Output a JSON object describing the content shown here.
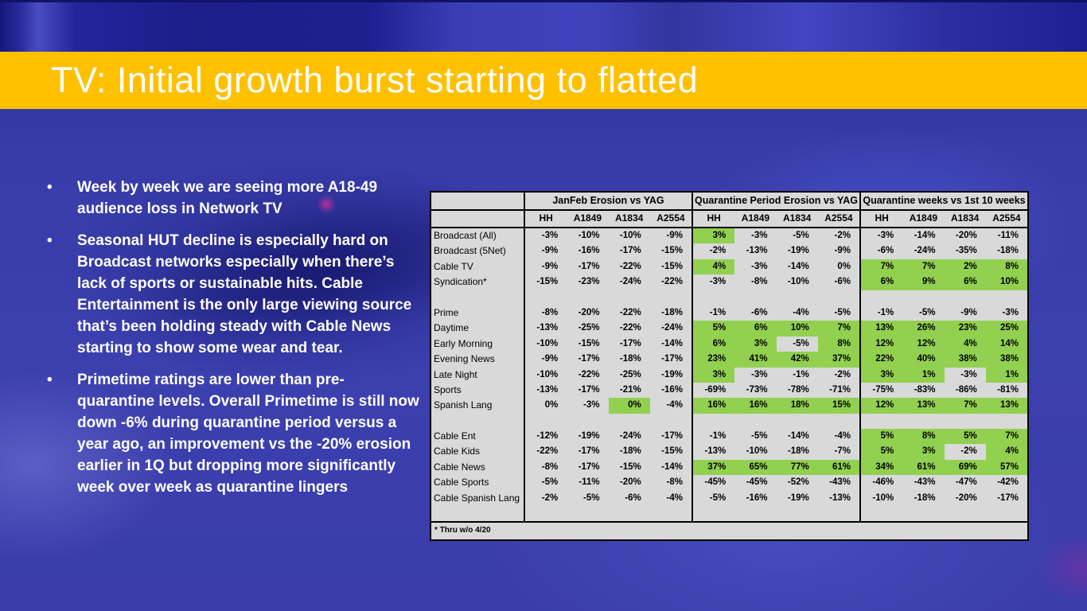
{
  "slide": {
    "title": "TV: Initial growth burst starting to flatted",
    "accent_color": "#FFC000"
  },
  "bullets": [
    "Week by week we are seeing more A18-49 audience loss in Network TV",
    "Seasonal HUT decline is especially hard on Broadcast networks especially when there’s lack of sports or sustainable hits. Cable Entertainment is the only large viewing source that’s been holding steady with Cable News starting to show some wear and tear.",
    "Primetime ratings are lower than pre-quarantine levels. Overall Primetime is still now down -6% during quarantine period versus a year ago, an improvement vs the -20% erosion earlier in 1Q but dropping more significantly week over week as quarantine lingers"
  ],
  "table": {
    "groups": [
      "JanFeb Erosion vs YAG",
      "Quarantine Period Erosion vs YAG",
      "Quarantine weeks vs 1st 10 weeks"
    ],
    "columns": [
      "HH",
      "A1849",
      "A1834",
      "A2554"
    ],
    "highlight_color": "#92D050",
    "background_color": "#D9D9D9",
    "footnote": "* Thru w/o 4/20",
    "rows": [
      {
        "label": "Broadcast (All)",
        "values": [
          "-3%",
          "-10%",
          "-10%",
          "-9%",
          "3%",
          "-3%",
          "-5%",
          "-2%",
          "-3%",
          "-14%",
          "-20%",
          "-11%"
        ],
        "green": [
          4
        ]
      },
      {
        "label": "Broadcast (5Net)",
        "values": [
          "-9%",
          "-16%",
          "-17%",
          "-15%",
          "-2%",
          "-13%",
          "-19%",
          "-9%",
          "-6%",
          "-24%",
          "-35%",
          "-18%"
        ],
        "green": []
      },
      {
        "label": "Cable TV",
        "values": [
          "-9%",
          "-17%",
          "-22%",
          "-15%",
          "4%",
          "-3%",
          "-14%",
          "0%",
          "7%",
          "7%",
          "2%",
          "8%"
        ],
        "green": [
          4,
          8,
          9,
          10,
          11
        ]
      },
      {
        "label": "Syndication*",
        "values": [
          "-15%",
          "-23%",
          "-24%",
          "-22%",
          "-3%",
          "-8%",
          "-10%",
          "-6%",
          "6%",
          "9%",
          "6%",
          "10%"
        ],
        "green": [
          8,
          9,
          10,
          11
        ]
      },
      {
        "spacer": true
      },
      {
        "label": "Prime",
        "values": [
          "-8%",
          "-20%",
          "-22%",
          "-18%",
          "-1%",
          "-6%",
          "-4%",
          "-5%",
          "-1%",
          "-5%",
          "-9%",
          "-3%"
        ],
        "green": []
      },
      {
        "label": "Daytime",
        "values": [
          "-13%",
          "-25%",
          "-22%",
          "-24%",
          "5%",
          "6%",
          "10%",
          "7%",
          "13%",
          "26%",
          "23%",
          "25%"
        ],
        "green": [
          4,
          5,
          6,
          7,
          8,
          9,
          10,
          11
        ]
      },
      {
        "label": "Early Morning",
        "values": [
          "-10%",
          "-15%",
          "-17%",
          "-14%",
          "6%",
          "3%",
          "-5%",
          "8%",
          "12%",
          "12%",
          "4%",
          "14%"
        ],
        "green": [
          4,
          5,
          7,
          8,
          9,
          10,
          11
        ]
      },
      {
        "label": "Evening News",
        "values": [
          "-9%",
          "-17%",
          "-18%",
          "-17%",
          "23%",
          "41%",
          "42%",
          "37%",
          "22%",
          "40%",
          "38%",
          "38%"
        ],
        "green": [
          4,
          5,
          6,
          7,
          8,
          9,
          10,
          11
        ]
      },
      {
        "label": "Late Night",
        "values": [
          "-10%",
          "-22%",
          "-25%",
          "-19%",
          "3%",
          "-3%",
          "-1%",
          "-2%",
          "3%",
          "1%",
          "-3%",
          "1%"
        ],
        "green": [
          4,
          8,
          9,
          11
        ]
      },
      {
        "label": "Sports",
        "values": [
          "-13%",
          "-17%",
          "-21%",
          "-16%",
          "-69%",
          "-73%",
          "-78%",
          "-71%",
          "-75%",
          "-83%",
          "-86%",
          "-81%"
        ],
        "green": []
      },
      {
        "label": "Spanish Lang",
        "values": [
          "0%",
          "-3%",
          "0%",
          "-4%",
          "16%",
          "16%",
          "18%",
          "15%",
          "12%",
          "13%",
          "7%",
          "13%"
        ],
        "green": [
          2,
          4,
          5,
          6,
          7,
          8,
          9,
          10,
          11
        ]
      },
      {
        "spacer": true
      },
      {
        "label": "Cable Ent",
        "values": [
          "-12%",
          "-19%",
          "-24%",
          "-17%",
          "-1%",
          "-5%",
          "-14%",
          "-4%",
          "5%",
          "8%",
          "5%",
          "7%"
        ],
        "green": [
          8,
          9,
          10,
          11
        ]
      },
      {
        "label": "Cable Kids",
        "values": [
          "-22%",
          "-17%",
          "-18%",
          "-15%",
          "-13%",
          "-10%",
          "-18%",
          "-7%",
          "5%",
          "3%",
          "-2%",
          "4%"
        ],
        "green": [
          8,
          9,
          11
        ]
      },
      {
        "label": "Cable News",
        "values": [
          "-8%",
          "-17%",
          "-15%",
          "-14%",
          "37%",
          "65%",
          "77%",
          "61%",
          "34%",
          "61%",
          "69%",
          "57%"
        ],
        "green": [
          4,
          5,
          6,
          7,
          8,
          9,
          10,
          11
        ]
      },
      {
        "label": "Cable Sports",
        "values": [
          "-5%",
          "-11%",
          "-20%",
          "-8%",
          "-45%",
          "-45%",
          "-52%",
          "-43%",
          "-46%",
          "-43%",
          "-47%",
          "-42%"
        ],
        "green": []
      },
      {
        "label": "Cable Spanish Lang",
        "values": [
          "-2%",
          "-5%",
          "-6%",
          "-4%",
          "-5%",
          "-16%",
          "-19%",
          "-13%",
          "-10%",
          "-18%",
          "-20%",
          "-17%"
        ],
        "green": []
      },
      {
        "spacer": true
      }
    ]
  }
}
